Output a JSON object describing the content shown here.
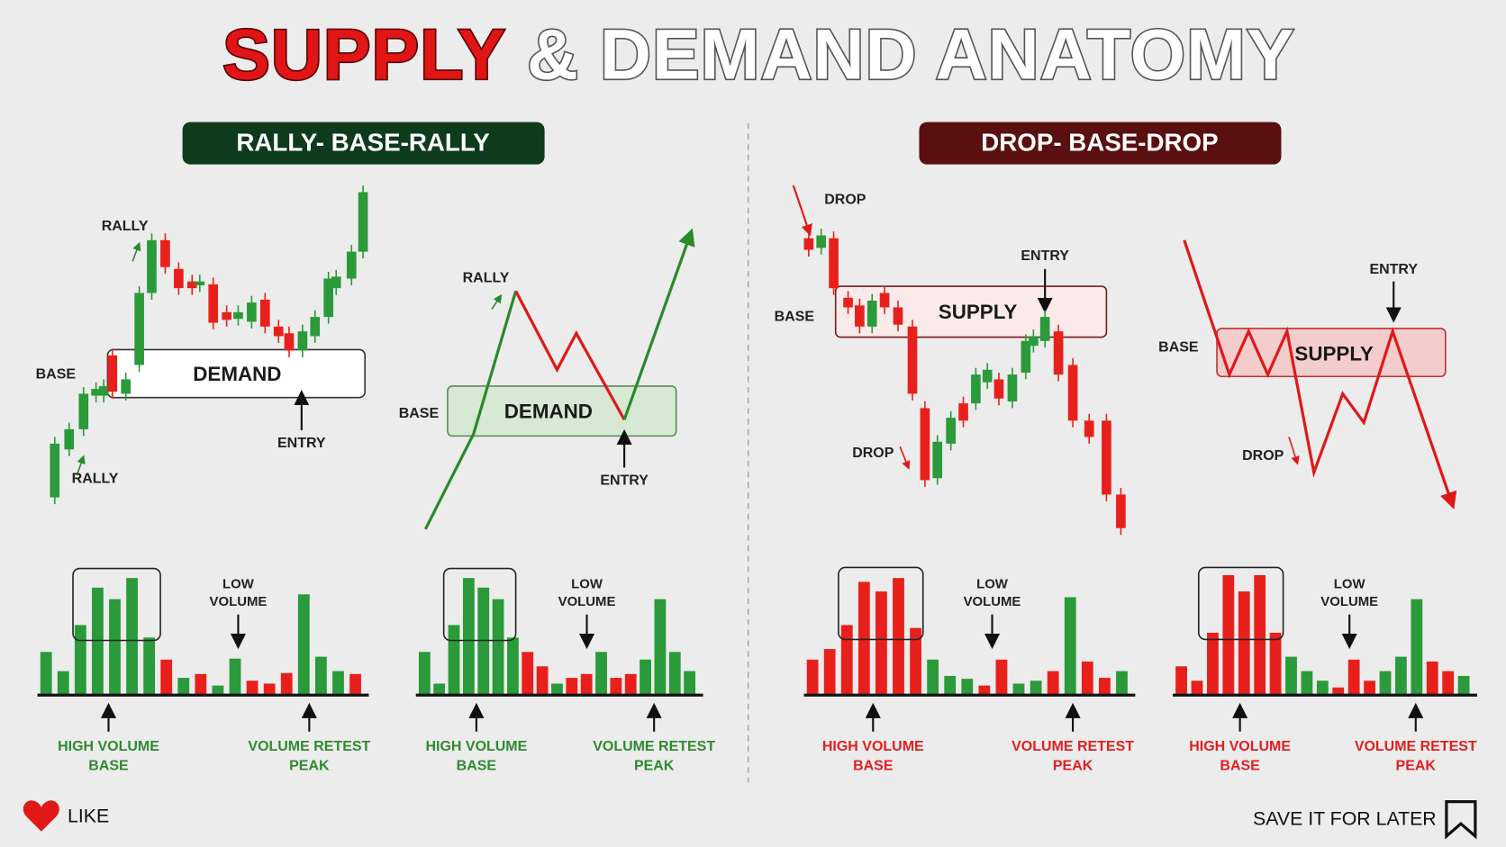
{
  "title": {
    "red": "SUPPLY",
    "white": "& DEMAND ANATOMY"
  },
  "panels": [
    {
      "heading": "RALLY- BASE-RALLY",
      "candle_chart": {
        "zone": "DEMAND",
        "labels": [
          "RALLY",
          "BASE",
          "RALLY",
          "ENTRY"
        ]
      },
      "line_chart": {
        "zone": "DEMAND",
        "labels": [
          "RALLY",
          "BASE",
          "ENTRY"
        ]
      },
      "volume_charts": [
        {
          "low": [
            "LOW",
            "VOLUME"
          ],
          "high": [
            "HIGH VOLUME",
            "BASE"
          ],
          "retest": [
            "VOLUME RETEST",
            "PEAK"
          ]
        },
        {
          "low": [
            "LOW",
            "VOLUME"
          ],
          "high": [
            "HIGH VOLUME",
            "BASE"
          ],
          "retest": [
            "VOLUME RETEST",
            "PEAK"
          ]
        }
      ]
    },
    {
      "heading": "DROP- BASE-DROP",
      "candle_chart": {
        "zone": "SUPPLY",
        "labels": [
          "DROP",
          "BASE",
          "ENTRY",
          "DROP"
        ]
      },
      "line_chart": {
        "zone": "SUPPLY",
        "labels": [
          "BASE",
          "ENTRY",
          "DROP"
        ]
      },
      "volume_charts": [
        {
          "low": [
            "LOW",
            "VOLUME"
          ],
          "high": [
            "HIGH VOLUME",
            "BASE"
          ],
          "retest": [
            "VOLUME RETEST",
            "PEAK"
          ]
        },
        {
          "low": [
            "LOW",
            "VOLUME"
          ],
          "high": [
            "HIGH VOLUME",
            "BASE"
          ],
          "retest": [
            "VOLUME RETEST",
            "PEAK"
          ]
        }
      ]
    }
  ],
  "footer": {
    "like": "LIKE",
    "save": "SAVE IT FOR LATER"
  }
}
